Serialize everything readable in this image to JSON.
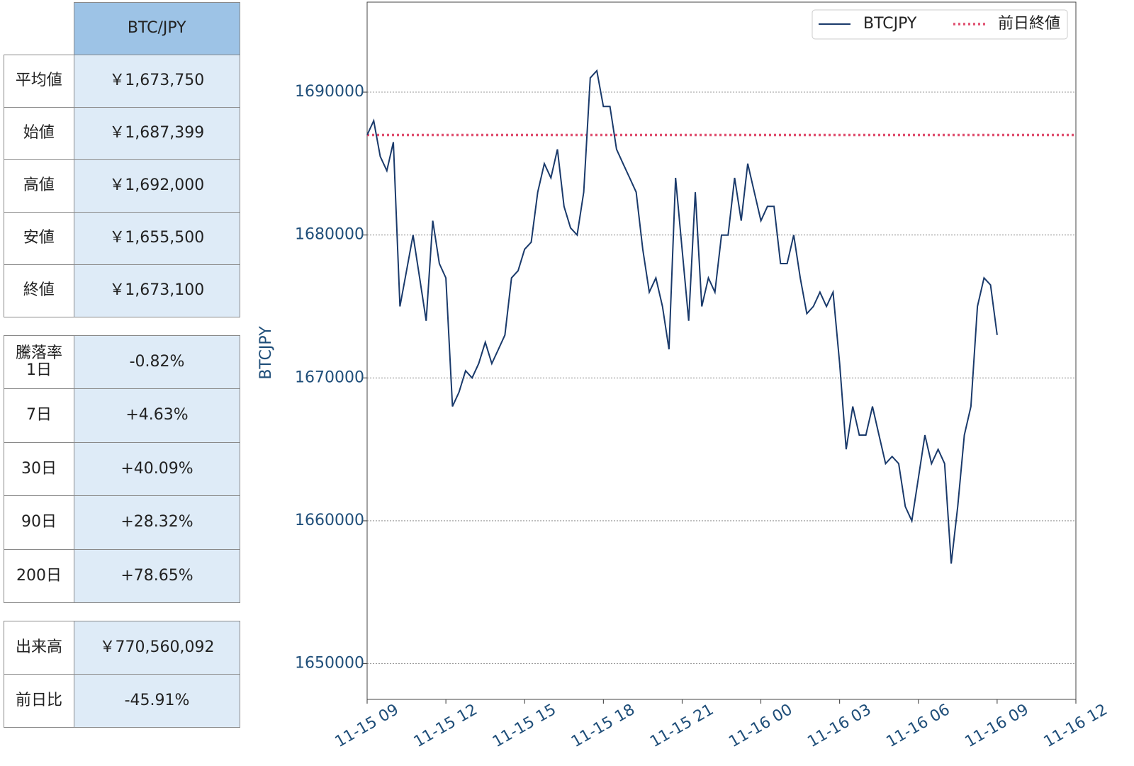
{
  "tables": [
    {
      "header": "BTC/JPY",
      "rows": [
        [
          "平均値",
          "￥1,673,750"
        ],
        [
          "始値",
          "￥1,687,399"
        ],
        [
          "高値",
          "￥1,692,000"
        ],
        [
          "安値",
          "￥1,655,500"
        ],
        [
          "終値",
          "￥1,673,100"
        ]
      ]
    },
    {
      "rows": [
        [
          "騰落率\n1日",
          "-0.82%"
        ],
        [
          "7日",
          "+4.63%"
        ],
        [
          "30日",
          "+40.09%"
        ],
        [
          "90日",
          "+28.32%"
        ],
        [
          "200日",
          "+78.65%"
        ]
      ]
    },
    {
      "rows": [
        [
          "出来高",
          "￥770,560,092"
        ],
        [
          "前日比",
          "-45.91%"
        ]
      ]
    }
  ],
  "chart_data": {
    "type": "line",
    "y_label": "BTCJPY",
    "legend": "upper right",
    "grid": true,
    "x": [
      "11-15 09:00",
      "11-15 09:15",
      "11-15 09:30",
      "11-15 09:45",
      "11-15 10:00",
      "11-15 10:15",
      "11-15 10:30",
      "11-15 10:45",
      "11-15 11:00",
      "11-15 11:15",
      "11-15 11:30",
      "11-15 11:45",
      "11-15 12:00",
      "11-15 12:15",
      "11-15 12:30",
      "11-15 12:45",
      "11-15 13:00",
      "11-15 13:15",
      "11-15 13:30",
      "11-15 13:45",
      "11-15 14:00",
      "11-15 14:15",
      "11-15 14:30",
      "11-15 14:45",
      "11-15 15:00",
      "11-15 15:15",
      "11-15 15:30",
      "11-15 15:45",
      "11-15 16:00",
      "11-15 16:15",
      "11-15 16:30",
      "11-15 16:45",
      "11-15 17:00",
      "11-15 17:15",
      "11-15 17:30",
      "11-15 17:45",
      "11-15 18:00",
      "11-15 18:15",
      "11-15 18:30",
      "11-15 18:45",
      "11-15 19:00",
      "11-15 19:15",
      "11-15 19:30",
      "11-15 19:45",
      "11-15 20:00",
      "11-15 20:15",
      "11-15 20:30",
      "11-15 20:45",
      "11-15 21:00",
      "11-15 21:15",
      "11-15 21:30",
      "11-15 21:45",
      "11-15 22:00",
      "11-15 22:15",
      "11-15 22:30",
      "11-15 22:45",
      "11-15 23:00",
      "11-15 23:15",
      "11-15 23:30",
      "11-15 23:45",
      "11-16 00:00",
      "11-16 00:15",
      "11-16 00:30",
      "11-16 00:45",
      "11-16 01:00",
      "11-16 01:15",
      "11-16 01:30",
      "11-16 01:45",
      "11-16 02:00",
      "11-16 02:15",
      "11-16 02:30",
      "11-16 02:45",
      "11-16 03:00",
      "11-16 03:15",
      "11-16 03:30",
      "11-16 03:45",
      "11-16 04:00",
      "11-16 04:15",
      "11-16 04:30",
      "11-16 04:45",
      "11-16 05:00",
      "11-16 05:15",
      "11-16 05:30",
      "11-16 05:45",
      "11-16 06:00",
      "11-16 06:15",
      "11-16 06:30",
      "11-16 06:45",
      "11-16 07:00",
      "11-16 07:15",
      "11-16 07:30",
      "11-16 07:45",
      "11-16 08:00",
      "11-16 08:15",
      "11-16 08:30",
      "11-16 08:45",
      "11-16 09:00"
    ],
    "series": [
      {
        "name": "BTCJPY",
        "color": "#1a3a6b",
        "values": [
          1687000,
          1688000,
          1685500,
          1684500,
          1686500,
          1675000,
          1677500,
          1680000,
          1677000,
          1674000,
          1681000,
          1678000,
          1677000,
          1668000,
          1669000,
          1670500,
          1670000,
          1671000,
          1672500,
          1671000,
          1672000,
          1673000,
          1677000,
          1677500,
          1679000,
          1679500,
          1683000,
          1685000,
          1684000,
          1686000,
          1682000,
          1680500,
          1680000,
          1683000,
          1691000,
          1691500,
          1689000,
          1689000,
          1686000,
          1685000,
          1684000,
          1683000,
          1679000,
          1676000,
          1677000,
          1675000,
          1672000,
          1684000,
          1679000,
          1674000,
          1683000,
          1675000,
          1677000,
          1676000,
          1680000,
          1680000,
          1684000,
          1681000,
          1685000,
          1683000,
          1681000,
          1682000,
          1682000,
          1678000,
          1678000,
          1680000,
          1677000,
          1674500,
          1675000,
          1676000,
          1675000,
          1676000,
          1671000,
          1665000,
          1668000,
          1666000,
          1666000,
          1668000,
          1666000,
          1664000,
          1664500,
          1664000,
          1661000,
          1660000,
          1663000,
          1666000,
          1664000,
          1665000,
          1664000,
          1657000,
          1661000,
          1666000,
          1668000,
          1675000,
          1677000,
          1676500,
          1673000
        ]
      }
    ],
    "reference": {
      "name": "前日終値",
      "value": 1687000,
      "color": "#e05070"
    },
    "xlim": [
      "11-15 09",
      "11-16 12"
    ],
    "xticks": [
      "11-15 09",
      "11-15 12",
      "11-15 15",
      "11-15 18",
      "11-15 21",
      "11-16 00",
      "11-16 03",
      "11-16 06",
      "11-16 09",
      "11-16 12"
    ],
    "ylim": [
      1647500,
      1696300
    ],
    "yticks": [
      1650000,
      1660000,
      1670000,
      1680000,
      1690000
    ]
  }
}
